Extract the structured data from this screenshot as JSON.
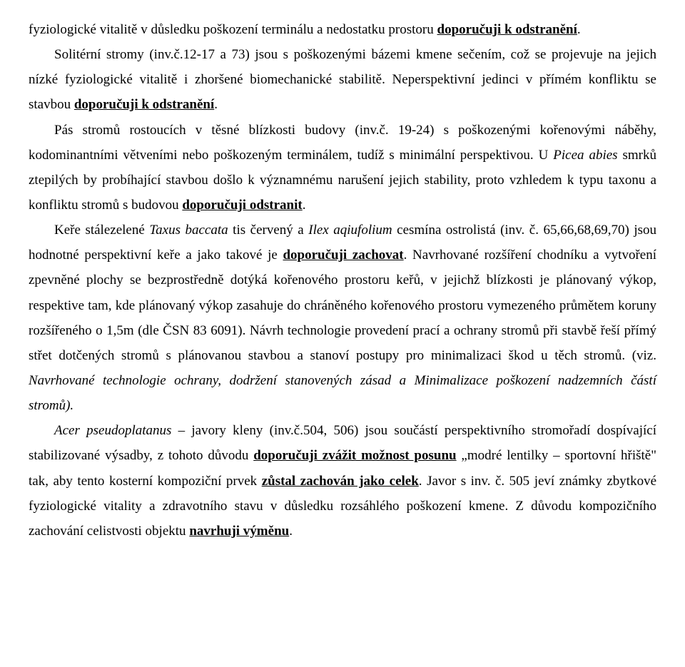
{
  "font_family": "Times New Roman",
  "font_size_pt": 14,
  "line_height": 1.85,
  "text_align": "justify",
  "background_color": "#ffffff",
  "text_color": "#000000",
  "paragraphs": {
    "p1a": "fyziologické vitalitě v důsledku poškození terminálu a nedostatku prostoru ",
    "p1b": "doporučuji k odstranění",
    "p1c": ".",
    "p2a": "Solitérní stromy (inv.č.12-17 a 73) jsou s poškozenými bázemi kmene sečením, což se projevuje na jejich nízké fyziologické vitalitě i zhoršené biomechanické stabilitě. Neperspektivní jedinci v přímém konfliktu se stavbou ",
    "p2b": "doporučuji k odstranění",
    "p2c": ".",
    "p3a": "Pás stromů rostoucích v těsné blízkosti budovy (inv.č. 19-24) s poškozenými kořenovými náběhy, kodominantními větveními nebo poškozeným terminálem, tudíž s minimální perspektivou. U ",
    "p3b": "Picea abies",
    "p3c": " smrků ztepilých by probíhající stavbou došlo k významnému narušení jejich stability, proto vzhledem k typu taxonu a konfliktu stromů s budovou ",
    "p3d": "doporučuji odstranit",
    "p3e": ".",
    "p4a": "Keře stálezelené ",
    "p4b": "Taxus baccata",
    "p4c": " tis červený a ",
    "p4d": "Ilex aqiufolium",
    "p4e": " cesmína ostrolistá (inv. č. 65,66,68,69,70) jsou hodnotné perspektivní keře a jako takové je ",
    "p4f": "doporučuji zachovat",
    "p4g": ". Navrhované rozšíření chodníku a vytvoření zpevněné plochy se bezprostředně dotýká kořenového prostoru keřů, v jejichž blízkosti je plánovaný výkop, respektive tam, kde plánovaný výkop zasahuje do chráněného kořenového prostoru vymezeného průmětem koruny rozšířeného o 1,5m (dle ČSN 83 6091). Návrh technologie provedení prací a ochrany stromů při stavbě řeší přímý střet dotčených stromů s plánovanou stavbou a stanoví postupy pro minimalizaci škod u těch stromů. (viz. ",
    "p4h": "Navrhované technologie ochrany, dodržení stanovených zásad a Minimalizace poškození nadzemních částí stromů).",
    "p5a": "Acer pseudoplatanus",
    "p5b": " – javory kleny (inv.č.504, 506) jsou součástí perspektivního stromořadí dospívající stabilizované výsadby, z tohoto důvodu ",
    "p5c": "doporučuji zvážit možnost posunu",
    "p5d": " „modré lentilky – sportovní hřiště\" tak, aby tento kosterní kompoziční prvek ",
    "p5e": "zůstal zachován jako celek",
    "p5f": ". Javor s inv. č. 505 jeví známky zbytkové fyziologické vitality a zdravotního stavu v důsledku rozsáhlého poškození kmene. Z důvodu kompozičního zachování celistvosti objektu ",
    "p5g": "navrhuji výměnu",
    "p5h": "."
  }
}
